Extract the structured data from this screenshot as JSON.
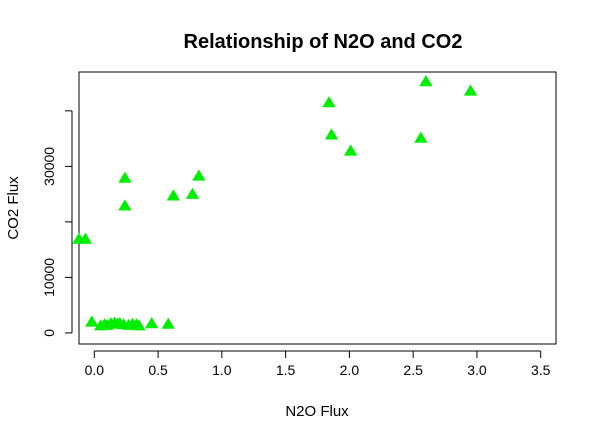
{
  "chart_data": {
    "type": "scatter",
    "title": "Relationship of N2O and CO2",
    "xlabel": "N2O Flux",
    "ylabel": "CO2 Flux",
    "xlim": [
      -0.12,
      3.62
    ],
    "ylim": [
      -2000,
      47000
    ],
    "x_ticks": [
      0.0,
      0.5,
      1.0,
      1.5,
      2.0,
      2.5,
      3.0,
      3.5
    ],
    "x_tick_labels": [
      "0.0",
      "0.5",
      "1.0",
      "1.5",
      "2.0",
      "2.5",
      "3.0",
      "3.5"
    ],
    "y_ticks": [
      0,
      10000,
      20000,
      30000,
      40000
    ],
    "y_tick_labels": [
      "0",
      "10000",
      "",
      "30000",
      ""
    ],
    "grid": false,
    "marker": "triangle",
    "colors": {
      "points": "#00ee00",
      "axes": "#000000"
    },
    "points": [
      {
        "x": -0.12,
        "y": 16800
      },
      {
        "x": -0.07,
        "y": 16800
      },
      {
        "x": -0.02,
        "y": 1900
      },
      {
        "x": 0.05,
        "y": 1200
      },
      {
        "x": 0.08,
        "y": 1400
      },
      {
        "x": 0.1,
        "y": 1300
      },
      {
        "x": 0.13,
        "y": 1600
      },
      {
        "x": 0.16,
        "y": 1700
      },
      {
        "x": 0.18,
        "y": 1500
      },
      {
        "x": 0.2,
        "y": 1600
      },
      {
        "x": 0.23,
        "y": 1400
      },
      {
        "x": 0.24,
        "y": 27800
      },
      {
        "x": 0.24,
        "y": 22800
      },
      {
        "x": 0.27,
        "y": 1300
      },
      {
        "x": 0.3,
        "y": 1500
      },
      {
        "x": 0.33,
        "y": 1400
      },
      {
        "x": 0.35,
        "y": 1200
      },
      {
        "x": 0.45,
        "y": 1600
      },
      {
        "x": 0.58,
        "y": 1500
      },
      {
        "x": 0.62,
        "y": 24600
      },
      {
        "x": 0.77,
        "y": 24900
      },
      {
        "x": 0.82,
        "y": 28200
      },
      {
        "x": 1.84,
        "y": 41400
      },
      {
        "x": 1.86,
        "y": 35600
      },
      {
        "x": 2.01,
        "y": 32700
      },
      {
        "x": 2.56,
        "y": 35000
      },
      {
        "x": 2.6,
        "y": 45200
      },
      {
        "x": 2.95,
        "y": 43500
      }
    ]
  }
}
